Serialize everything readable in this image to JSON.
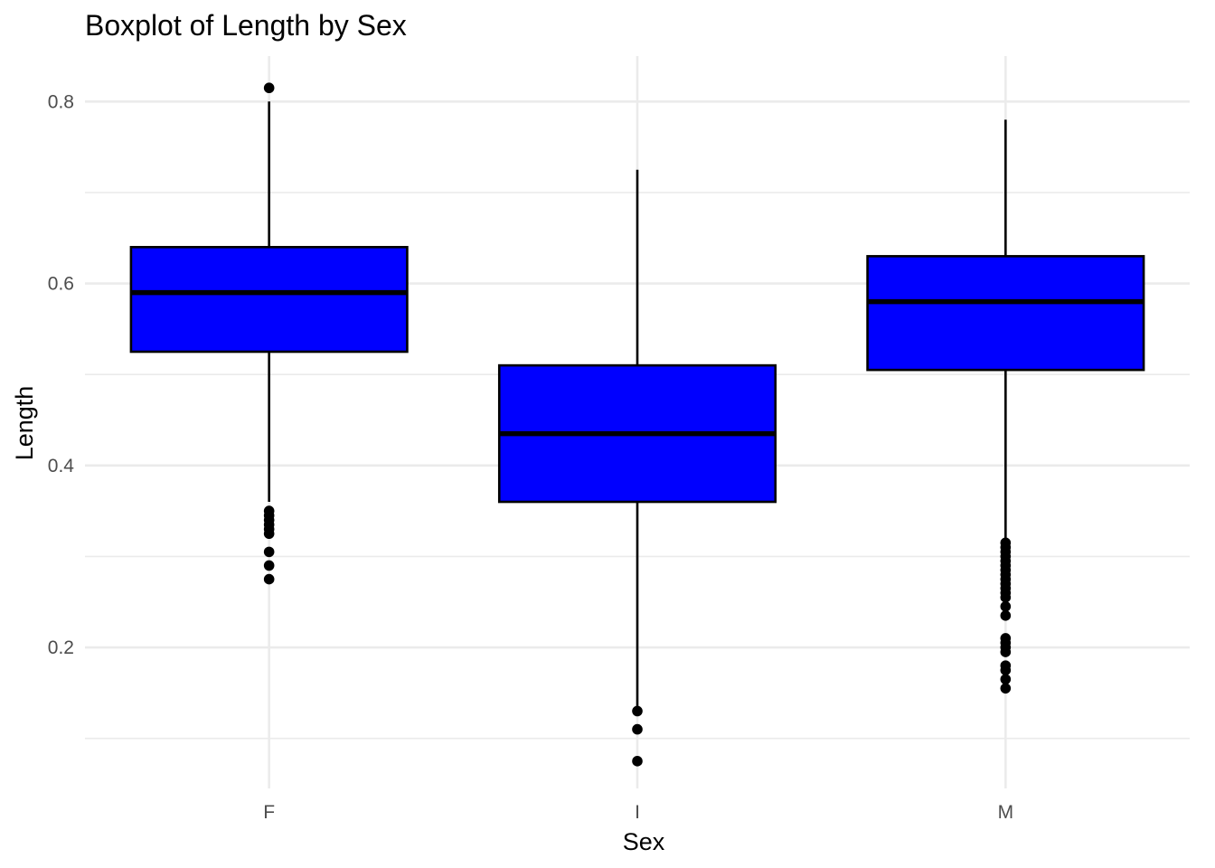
{
  "chart_data": {
    "type": "boxplot",
    "title": "Boxplot of Length by Sex",
    "xlabel": "Sex",
    "ylabel": "Length",
    "categories": [
      "F",
      "I",
      "M"
    ],
    "ylim": [
      0.045,
      0.85
    ],
    "yticks": [
      0.2,
      0.4,
      0.6,
      0.8
    ],
    "ytick_labels": [
      "0.2",
      "0.4",
      "0.6",
      "0.8"
    ],
    "grid": true,
    "box_fill": "#0000ff",
    "box_stroke": "#000000",
    "gridline_color": "#ebebeb",
    "series": [
      {
        "category": "F",
        "whisker_low": 0.36,
        "q1": 0.525,
        "median": 0.59,
        "q3": 0.64,
        "whisker_high": 0.8,
        "outliers": [
          0.815,
          0.35,
          0.345,
          0.34,
          0.335,
          0.33,
          0.325,
          0.305,
          0.29,
          0.275
        ]
      },
      {
        "category": "I",
        "whisker_low": 0.135,
        "q1": 0.36,
        "median": 0.435,
        "q3": 0.51,
        "whisker_high": 0.725,
        "outliers": [
          0.13,
          0.11,
          0.075
        ]
      },
      {
        "category": "M",
        "whisker_low": 0.32,
        "q1": 0.505,
        "median": 0.58,
        "q3": 0.63,
        "whisker_high": 0.78,
        "outliers": [
          0.315,
          0.31,
          0.305,
          0.3,
          0.295,
          0.29,
          0.285,
          0.28,
          0.275,
          0.27,
          0.265,
          0.26,
          0.255,
          0.245,
          0.235,
          0.21,
          0.205,
          0.2,
          0.195,
          0.18,
          0.175,
          0.165,
          0.155
        ]
      }
    ]
  }
}
